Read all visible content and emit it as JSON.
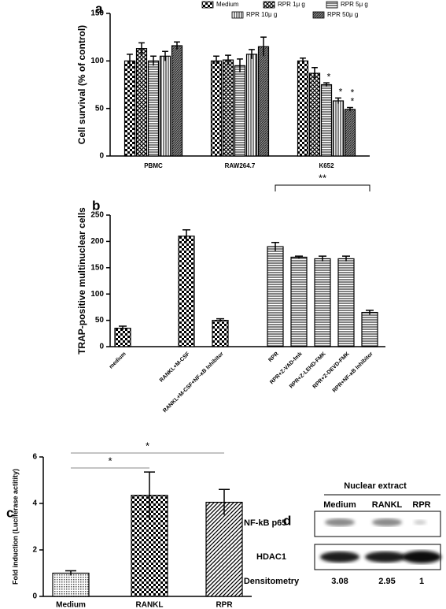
{
  "chart_data": [
    {
      "type": "bar",
      "panel": "a",
      "ylabel": "Cell survival (% of control)",
      "categories": [
        "PBMC",
        "RAW264.7",
        "K652"
      ],
      "ylim": [
        0,
        150
      ],
      "yticks": [
        0,
        50,
        100,
        150
      ],
      "series": [
        {
          "name": "Medium",
          "pattern": "checker",
          "color": "#000000",
          "values": [
            100,
            100,
            100
          ],
          "errors": [
            7,
            5,
            3
          ],
          "sig": [
            null,
            null,
            null
          ]
        },
        {
          "name": "RPR 1μ g",
          "pattern": "crosshatch",
          "color": "#000000",
          "values": [
            113,
            101,
            87
          ],
          "errors": [
            6,
            5,
            6
          ],
          "sig": [
            null,
            null,
            null
          ]
        },
        {
          "name": "RPR 5μ g",
          "pattern": "hlines",
          "color": "#000000",
          "values": [
            100,
            95,
            75
          ],
          "errors": [
            5,
            7,
            2
          ],
          "sig": [
            null,
            null,
            [
              "*"
            ]
          ]
        },
        {
          "name": "RPR 10μ g",
          "pattern": "vlines",
          "color": "#000000",
          "values": [
            105,
            107,
            58
          ],
          "errors": [
            5,
            5,
            3
          ],
          "sig": [
            null,
            null,
            [
              "*"
            ]
          ]
        },
        {
          "name": "RPR 50μ g",
          "pattern": "dense",
          "color": "#000000",
          "values": [
            116,
            115,
            49
          ],
          "errors": [
            4,
            10,
            2
          ],
          "sig": [
            null,
            null,
            [
              "*",
              "*"
            ]
          ]
        }
      ]
    },
    {
      "type": "bar",
      "panel": "b",
      "ylabel": "TRAP-positive multinuclear cells",
      "categories": [
        "medium",
        "RANKL+M-CSF",
        "RANKL+M-CSF+NF-κB Inhibitor",
        "RPR",
        "RPR+Z-VAD-fmk",
        "RPR+Z-LEHD-FMK",
        "RPR+Z-DEVD-FMK",
        "RPR+NF-κB Inhibitor"
      ],
      "values": [
        35,
        210,
        50,
        190,
        170,
        167,
        167,
        65
      ],
      "errors": [
        4,
        12,
        3,
        8,
        2,
        5,
        5,
        4
      ],
      "patterns": [
        "checker",
        "checker",
        "checker",
        "hlines",
        "hlines",
        "hlines",
        "hlines",
        "hlines"
      ],
      "color": "#000000",
      "ylim": [
        0,
        250
      ],
      "yticks": [
        0,
        50,
        100,
        150,
        200,
        250
      ],
      "annotations": [
        {
          "text": "**",
          "from": "RPR",
          "to": "RPR+NF-κB Inhibitor"
        }
      ]
    },
    {
      "type": "bar",
      "panel": "c",
      "ylabel": "Fold induction (Luciferase actitity)",
      "categories": [
        "Medium",
        "RANKL",
        "RPR"
      ],
      "values": [
        1,
        4.35,
        4.05
      ],
      "errors": [
        0.1,
        1.0,
        0.55
      ],
      "patterns": [
        "dots",
        "checker",
        "diag"
      ],
      "color": "#000000",
      "ylim": [
        0,
        6
      ],
      "yticks": [
        0,
        2,
        4,
        6
      ],
      "annotations": [
        {
          "text": "*",
          "from": "Medium",
          "to": "RANKL"
        },
        {
          "text": "*",
          "from": "Medium",
          "to": "RPR"
        }
      ]
    }
  ],
  "blot": {
    "panel": "d",
    "title": "Nuclear extract",
    "columns": [
      "Medium",
      "RANKL",
      "RPR"
    ],
    "rows": [
      "NF-kB p65",
      "HDAC1"
    ],
    "densitometry_label": "Densitometry",
    "densitometry": [
      3.08,
      2.95,
      1
    ]
  }
}
